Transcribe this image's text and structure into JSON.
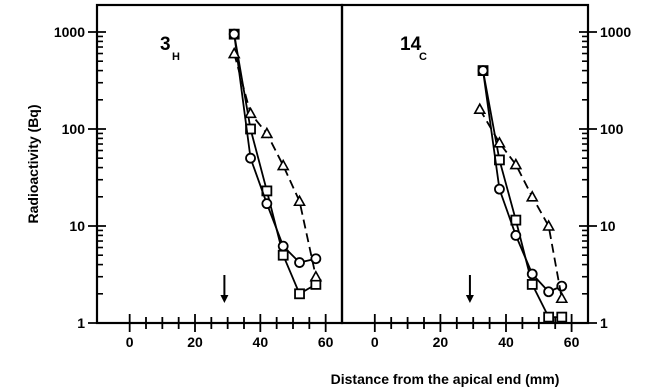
{
  "chart_data": [
    {
      "panel": "left",
      "type": "line",
      "label_main": "3",
      "label_sub": "H",
      "xlim": [
        -10,
        65
      ],
      "ylim": [
        1,
        1000
      ],
      "yscale": "log",
      "x_ticks": [
        "0",
        "20",
        "40",
        "60"
      ],
      "y_ticks": [
        "1",
        "10",
        "100",
        "1000"
      ],
      "ylabel": "Radioactivity (Bq)",
      "arrow_x": 29,
      "series": [
        {
          "marker": "square",
          "line": "solid",
          "x": [
            32,
            37,
            42,
            47,
            52,
            57
          ],
          "y": [
            950,
            100,
            23,
            5,
            2,
            2.5
          ]
        },
        {
          "marker": "circle",
          "line": "solid",
          "x": [
            32,
            37,
            42,
            47,
            52,
            57
          ],
          "y": [
            950,
            50,
            17,
            6.2,
            4.2,
            4.6
          ]
        },
        {
          "marker": "triangle",
          "line": "dashed",
          "x": [
            32,
            37,
            42,
            47,
            52,
            57
          ],
          "y": [
            600,
            145,
            90,
            42,
            18,
            3
          ]
        }
      ]
    },
    {
      "panel": "right",
      "type": "line",
      "label_main": "14",
      "label_sub": "C",
      "xlim": [
        -10,
        65
      ],
      "ylim": [
        1,
        1000
      ],
      "yscale": "log",
      "x_ticks": [
        "0",
        "20",
        "40",
        "60"
      ],
      "y_ticks": [
        "1",
        "10",
        "100",
        "1000"
      ],
      "xlabel": "Distance from the apical end (mm)",
      "arrow_x": 29,
      "series": [
        {
          "marker": "square",
          "line": "solid",
          "x": [
            33,
            38,
            43,
            48,
            53,
            57
          ],
          "y": [
            400,
            48,
            11.5,
            2.5,
            1.15,
            1.15
          ]
        },
        {
          "marker": "circle",
          "line": "solid",
          "x": [
            33,
            38,
            43,
            48,
            53,
            57
          ],
          "y": [
            400,
            24,
            8,
            3.2,
            2.1,
            2.4
          ]
        },
        {
          "marker": "triangle",
          "line": "dashed",
          "x": [
            32,
            38,
            43,
            48,
            53,
            57
          ],
          "y": [
            160,
            72,
            43,
            20,
            10,
            1.8
          ]
        }
      ]
    }
  ]
}
